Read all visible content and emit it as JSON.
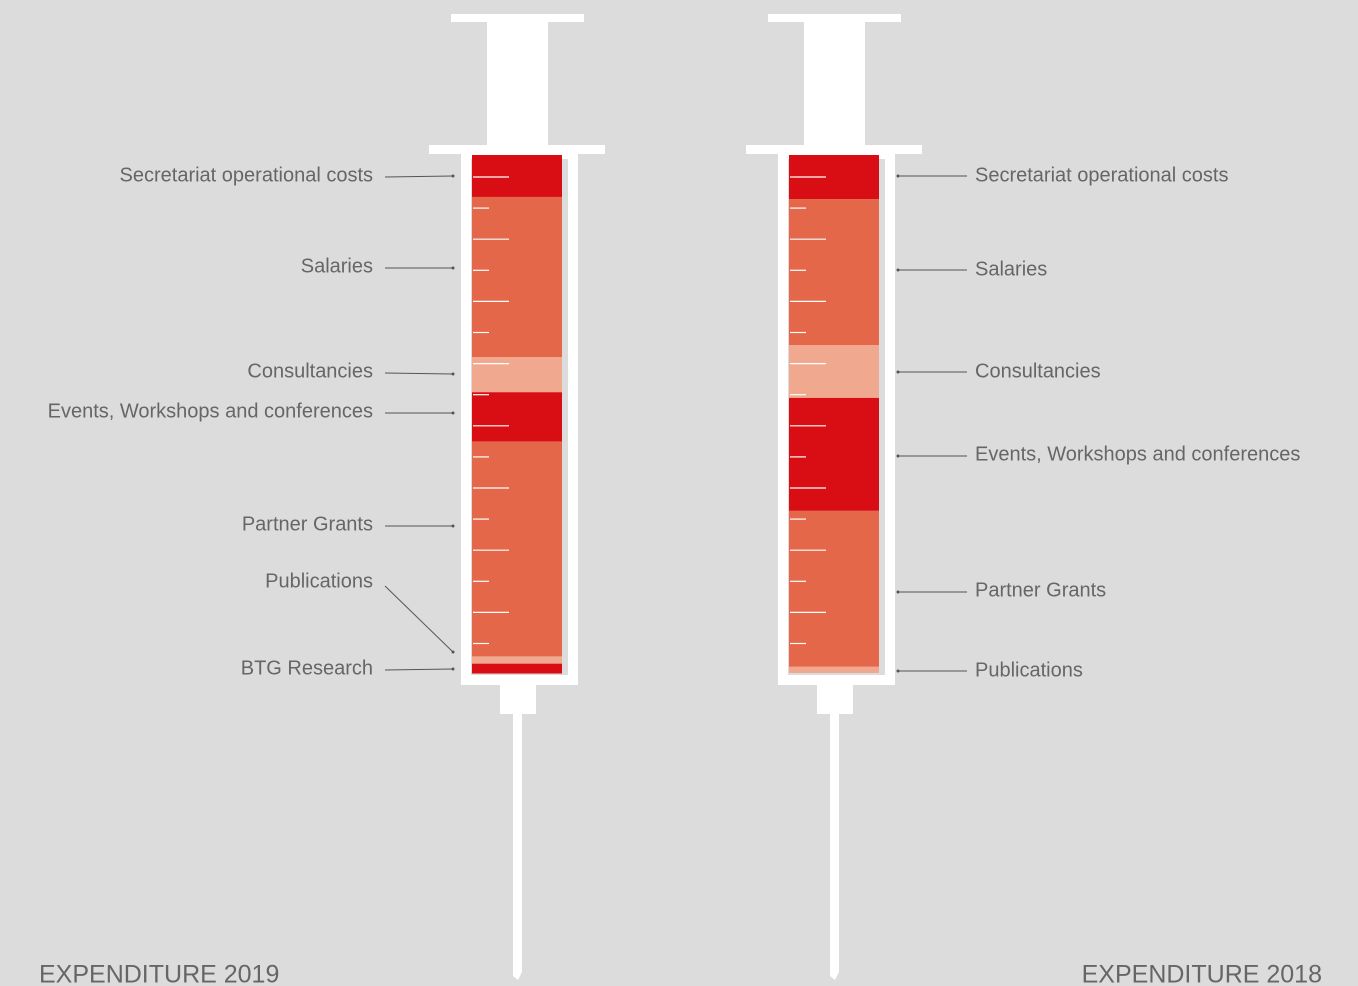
{
  "chart_data": [
    {
      "type": "stacked-bar",
      "title": "EXPENDITURE 2019",
      "categories": [
        "Secretariat operational costs",
        "Salaries",
        "Consultancies",
        "Events, Workshops and conferences",
        "Partner Grants",
        "Publications",
        "BTG Research"
      ],
      "values": [
        8.1,
        30.9,
        6.8,
        9.5,
        41.5,
        1.4,
        1.9
      ],
      "colors": [
        "#d90e15",
        "#e5674a",
        "#f0a88e",
        "#d90e15",
        "#e5674a",
        "#f0a88e",
        "#d90e15"
      ],
      "ylim": [
        0,
        100
      ]
    },
    {
      "type": "stacked-bar",
      "title": "EXPENDITURE 2018",
      "categories": [
        "Secretariat operational costs",
        "Salaries",
        "Consultancies",
        "Events, Workshops and conferences",
        "Partner Grants",
        "Publications"
      ],
      "values": [
        8.5,
        28.2,
        10.2,
        21.8,
        30.1,
        1.2
      ],
      "colors": [
        "#d90e15",
        "#e5674a",
        "#f0a88e",
        "#d90e15",
        "#e5674a",
        "#f0a88e"
      ],
      "ylim": [
        0,
        100
      ]
    }
  ]
}
